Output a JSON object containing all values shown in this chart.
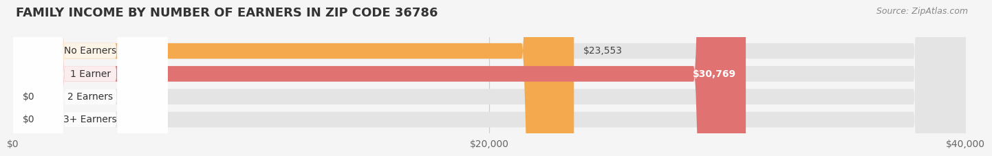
{
  "title": "FAMILY INCOME BY NUMBER OF EARNERS IN ZIP CODE 36786",
  "source": "Source: ZipAtlas.com",
  "categories": [
    "No Earners",
    "1 Earner",
    "2 Earners",
    "3+ Earners"
  ],
  "values": [
    23553,
    30769,
    0,
    0
  ],
  "bar_colors": [
    "#F5A94E",
    "#E07272",
    "#A8BFE0",
    "#C9A8D4"
  ],
  "value_labels": [
    "$23,553",
    "$30,769",
    "$0",
    "$0"
  ],
  "value_label_colors": [
    "#444444",
    "#ffffff",
    "#555555",
    "#555555"
  ],
  "value_label_inside": [
    false,
    true,
    false,
    false
  ],
  "xlim": [
    0,
    40000
  ],
  "xticks": [
    0,
    20000,
    40000
  ],
  "xtick_labels": [
    "$0",
    "$20,000",
    "$40,000"
  ],
  "background_color": "#f5f5f5",
  "bar_bg_color": "#e4e4e4",
  "title_fontsize": 13,
  "cat_fontsize": 10,
  "val_fontsize": 10,
  "tick_fontsize": 10,
  "source_fontsize": 9
}
